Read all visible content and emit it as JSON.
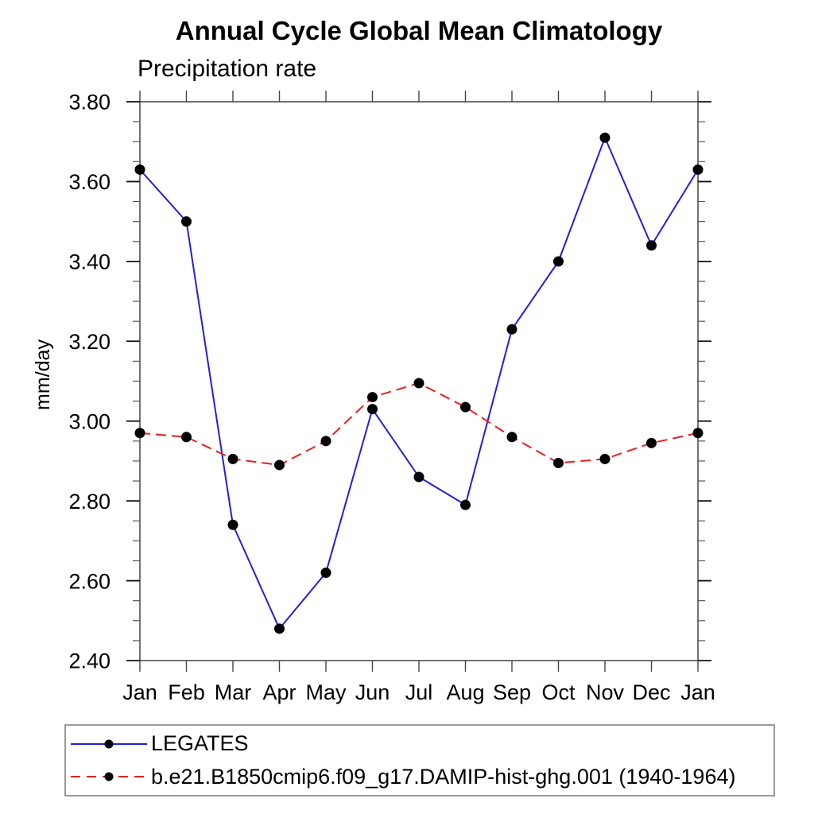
{
  "chart_data": {
    "type": "line",
    "title": "Annual Cycle Global Mean Climatology",
    "subtitle": "Precipitation rate",
    "ylabel": "mm/day",
    "x_categories": [
      "Jan",
      "Feb",
      "Mar",
      "Apr",
      "May",
      "Jun",
      "Jul",
      "Aug",
      "Sep",
      "Oct",
      "Nov",
      "Dec",
      "Jan"
    ],
    "ylim": [
      2.4,
      3.8
    ],
    "y_major_step": 0.2,
    "y_minor_step": 0.05,
    "y_tick_labels": [
      "2.40",
      "2.60",
      "2.80",
      "3.00",
      "3.20",
      "3.40",
      "3.60",
      "3.80"
    ],
    "grid": false,
    "legend_position": "bottom-left",
    "series": [
      {
        "name": "LEGATES",
        "color": "#2020d8",
        "style": "solid",
        "marker": "circle",
        "marker_color": "#000000",
        "values": [
          3.63,
          3.5,
          2.74,
          2.48,
          2.62,
          3.03,
          2.86,
          2.79,
          3.23,
          3.4,
          3.71,
          3.44,
          3.63
        ]
      },
      {
        "name": "b.e21.B1850cmip6.f09_g17.DAMIP-hist-ghg.001 (1940-1964)",
        "color": "#eb1e1e",
        "style": "dashed",
        "marker": "circle",
        "marker_color": "#000000",
        "values": [
          2.97,
          2.96,
          2.905,
          2.89,
          2.95,
          3.06,
          3.095,
          3.035,
          2.96,
          2.895,
          2.905,
          2.945,
          2.97
        ]
      }
    ]
  }
}
